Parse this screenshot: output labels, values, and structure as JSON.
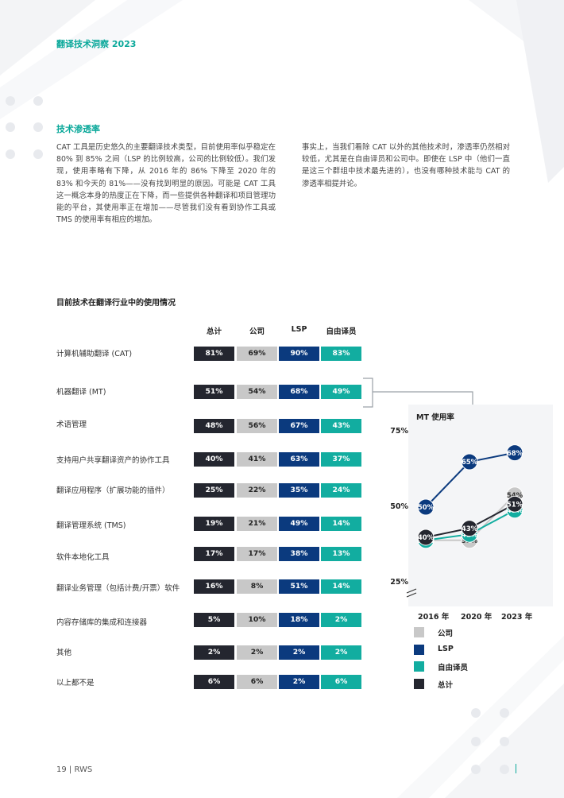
{
  "header": {
    "title": "翻译技术洞察 2023"
  },
  "section": {
    "heading": "技术渗透率",
    "paragraph_left": "CAT 工具是历史悠久的主要翻译技术类型，目前使用率似乎稳定在 80% 到 85% 之间（LSP 的比例较高，公司的比例较低）。我们发现，使用率略有下降，从 2016 年的 86% 下降至 2020 年的 83% 和今天的 81%——没有找到明显的原因。可能是 CAT 工具这一概念本身的热度正在下降，而一些提供各种翻译和项目管理功能的平台，其使用率正在增加——尽管我们没有看到协作工具或 TMS 的使用率有相应的增加。",
    "paragraph_right": "事实上，当我们看除 CAT 以外的其他技术时，渗透率仍然相对较低，尤其是在自由译员和公司中。即使在 LSP 中（他们一直是这三个群组中技术最先进的），也没有哪种技术能与 CAT 的渗透率相提并论。"
  },
  "table": {
    "title": "目前技术在翻译行业中的使用情况",
    "columns": [
      "总计",
      "公司",
      "LSP",
      "自由译员"
    ],
    "rows": [
      {
        "label": "计算机辅助翻译 (CAT)",
        "values": [
          "81%",
          "69%",
          "90%",
          "83%"
        ]
      },
      {
        "label": "机器翻译 (MT)",
        "values": [
          "51%",
          "54%",
          "68%",
          "49%"
        ]
      },
      {
        "label": "术语管理",
        "values": [
          "48%",
          "56%",
          "67%",
          "43%"
        ]
      },
      {
        "label": "支持用户共享翻译资产的协作工具",
        "values": [
          "40%",
          "41%",
          "63%",
          "37%"
        ]
      },
      {
        "label": "翻译应用程序（扩展功能的插件）",
        "values": [
          "25%",
          "22%",
          "35%",
          "24%"
        ]
      },
      {
        "label": "翻译管理系统 (TMS)",
        "values": [
          "19%",
          "21%",
          "49%",
          "14%"
        ]
      },
      {
        "label": "软件本地化工具",
        "values": [
          "17%",
          "17%",
          "38%",
          "13%"
        ]
      },
      {
        "label": "翻译业务管理（包括计费/开票）软件",
        "values": [
          "16%",
          "8%",
          "51%",
          "14%"
        ]
      },
      {
        "label": "内容存储库的集成和连接器",
        "values": [
          "5%",
          "10%",
          "18%",
          "2%"
        ]
      },
      {
        "label": "其他",
        "values": [
          "2%",
          "2%",
          "2%",
          "2%"
        ]
      },
      {
        "label": "以上都不是",
        "values": [
          "6%",
          "6%",
          "2%",
          "6%"
        ]
      }
    ]
  },
  "chart_data": {
    "type": "line",
    "title": "MT 使用率",
    "x": [
      "2016 年",
      "2020 年",
      "2023 年"
    ],
    "y_ticks": [
      "75%",
      "50%",
      "25%"
    ],
    "ylim": [
      25,
      75
    ],
    "axis_break": true,
    "series": [
      {
        "name": "公司",
        "values": [
          39,
          39,
          54
        ],
        "labels": [
          "39%",
          "39%",
          "54%"
        ],
        "color": "#c8c8c8"
      },
      {
        "name": "LSP",
        "values": [
          50,
          65,
          68
        ],
        "labels": [
          "50%",
          "65%",
          "68%"
        ],
        "color": "#0b3a7e"
      },
      {
        "name": "自由译员",
        "values": [
          39,
          41,
          49
        ],
        "labels": [
          "39%",
          "41%",
          "49%"
        ],
        "color": "#12ada0"
      },
      {
        "name": "总计",
        "values": [
          40,
          43,
          51
        ],
        "labels": [
          "40%",
          "43%",
          "51%"
        ],
        "color": "#24262f"
      }
    ]
  },
  "legend": {
    "items": [
      {
        "label": "公司",
        "color": "#c8c8c8"
      },
      {
        "label": "LSP",
        "color": "#0b3a7e"
      },
      {
        "label": "自由译员",
        "color": "#12ada0"
      },
      {
        "label": "总计",
        "color": "#24262f"
      }
    ]
  },
  "footer": {
    "text": "19 |  RWS"
  },
  "colors": {
    "accent": "#0aa89a",
    "total": "#24262f",
    "company": "#c8c8c8",
    "lsp": "#0b3a7e",
    "freelancer": "#12ada0"
  }
}
